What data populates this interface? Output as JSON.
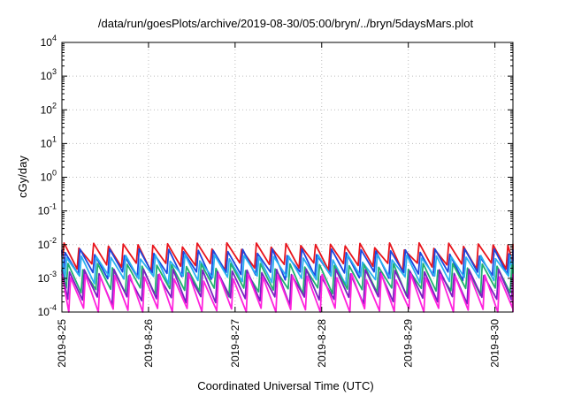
{
  "chart_data": {
    "type": "line",
    "title": "/data/run/goesPlots/archive/2019-08-30/05:00/bryn/../bryn/5daysMars.plot",
    "xlabel": "Coordinated Universal Time (UTC)",
    "ylabel": "cGy/day",
    "yscale": "log",
    "ylim": [
      0.0001,
      10000
    ],
    "xlim": [
      "2019-08-25T00:00",
      "2019-08-30T05:00"
    ],
    "grid": true,
    "legend": "none",
    "y_ticks": [
      {
        "value": 0.0001,
        "base": "10",
        "exp": "-4"
      },
      {
        "value": 0.001,
        "base": "10",
        "exp": "-3"
      },
      {
        "value": 0.01,
        "base": "10",
        "exp": "-2"
      },
      {
        "value": 0.1,
        "base": "10",
        "exp": "-1"
      },
      {
        "value": 1,
        "base": "10",
        "exp": "0"
      },
      {
        "value": 10,
        "base": "10",
        "exp": "1"
      },
      {
        "value": 100,
        "base": "10",
        "exp": "2"
      },
      {
        "value": 1000,
        "base": "10",
        "exp": "3"
      },
      {
        "value": 10000,
        "base": "10",
        "exp": "4"
      }
    ],
    "x_ticks": [
      {
        "value": "2019-08-25T00:00",
        "label": "2019-8-25"
      },
      {
        "value": "2019-08-26T00:00",
        "label": "2019-8-26"
      },
      {
        "value": "2019-08-27T00:00",
        "label": "2019-8-27"
      },
      {
        "value": "2019-08-28T00:00",
        "label": "2019-8-28"
      },
      {
        "value": "2019-08-29T00:00",
        "label": "2019-8-29"
      },
      {
        "value": "2019-08-30T00:00",
        "label": "2019-8-30"
      }
    ],
    "series": [
      {
        "color": "#e8141c",
        "peak_mag": 0.009,
        "trough_mag": 0.0022,
        "period_hours": 4.1,
        "phase_hours": 0.6
      },
      {
        "color": "#1a47e0",
        "peak_mag": 0.006,
        "trough_mag": 0.0012,
        "period_hours": 4.1,
        "phase_hours": 0.9
      },
      {
        "color": "#2ab0f0",
        "peak_mag": 0.004,
        "trough_mag": 0.0009,
        "period_hours": 4.1,
        "phase_hours": 1.3
      },
      {
        "color": "#20b070",
        "peak_mag": 0.0022,
        "trough_mag": 0.0004,
        "period_hours": 4.1,
        "phase_hours": 1.7
      },
      {
        "color": "#7a20c0",
        "peak_mag": 0.0015,
        "trough_mag": 0.00022,
        "period_hours": 4.1,
        "phase_hours": 2.1
      },
      {
        "color": "#ff22dd",
        "peak_mag": 0.0011,
        "trough_mag": 0.0001,
        "period_hours": 4.1,
        "phase_hours": 2.4
      }
    ]
  }
}
